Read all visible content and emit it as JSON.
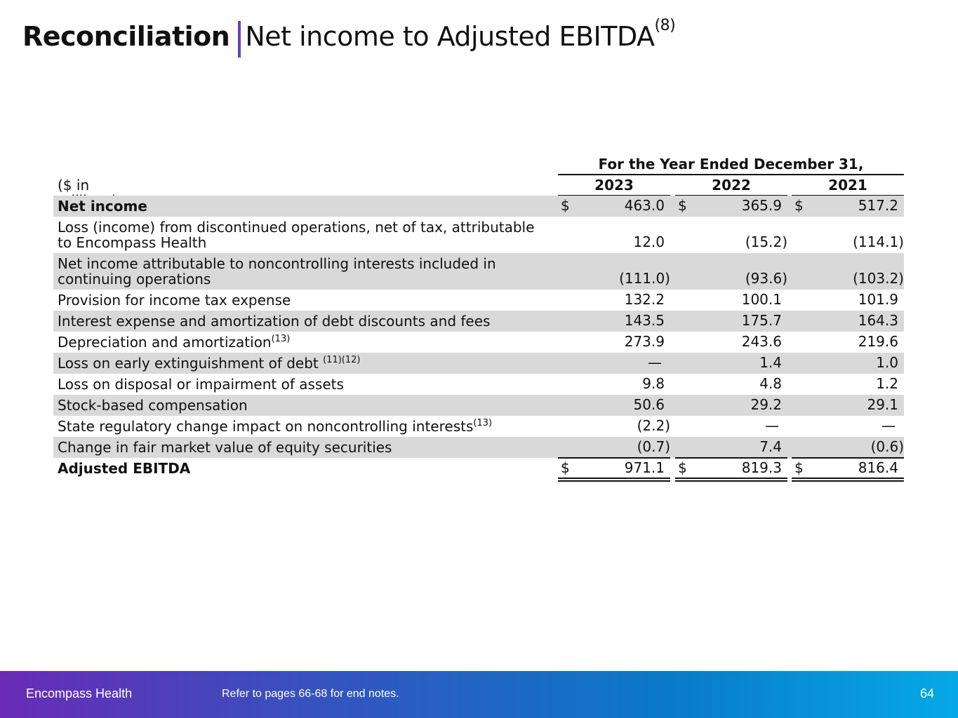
{
  "title": {
    "bold": "Reconciliation",
    "rest": "Net income to Adjusted EBITDA",
    "sup": "(8)"
  },
  "table": {
    "period_header": "For the Year Ended December 31,",
    "units_label": "($ in millions)",
    "years": [
      "2023",
      "2022",
      "2021"
    ],
    "rows": [
      {
        "label": "Net income",
        "sup": "",
        "values": [
          "463.0",
          "365.9",
          "517.2"
        ],
        "dollar": true,
        "bold": true
      },
      {
        "label": "Loss (income) from discontinued operations, net of tax, attributable\n   to Encompass Health",
        "sup": "",
        "values": [
          "12.0",
          "(15.2)",
          "(114.1)"
        ]
      },
      {
        "label": "Net income attributable to noncontrolling interests included in\n   continuing operations",
        "sup": "",
        "values": [
          "(111.0)",
          "(93.6)",
          "(103.2)"
        ]
      },
      {
        "label": "Provision for income tax expense",
        "sup": "",
        "values": [
          "132.2",
          "100.1",
          "101.9"
        ]
      },
      {
        "label": "Interest expense and amortization of debt discounts and fees",
        "sup": "",
        "values": [
          "143.5",
          "175.7",
          "164.3"
        ]
      },
      {
        "label": "Depreciation and amortization",
        "sup": "(13)",
        "values": [
          "273.9",
          "243.6",
          "219.6"
        ]
      },
      {
        "label": "Loss on early extinguishment of debt ",
        "sup": "(11)(12)",
        "values": [
          "—",
          "1.4",
          "1.0"
        ]
      },
      {
        "label": "Loss on disposal or impairment of assets",
        "sup": "",
        "values": [
          "9.8",
          "4.8",
          "1.2"
        ]
      },
      {
        "label": "Stock-based compensation",
        "sup": "",
        "values": [
          "50.6",
          "29.2",
          "29.1"
        ]
      },
      {
        "label": "State regulatory change impact on noncontrolling interests",
        "sup": "(13)",
        "values": [
          "(2.2)",
          "—",
          "—"
        ]
      },
      {
        "label": "Change in fair market value of equity securities",
        "sup": "",
        "values": [
          "(0.7)",
          "7.4",
          "(0.6)"
        ]
      },
      {
        "label": "   Adjusted EBITDA",
        "sup": "",
        "values": [
          "971.1",
          "819.3",
          "816.4"
        ],
        "dollar": true,
        "bold": true
      }
    ],
    "currency_symbol": "$"
  },
  "footer": {
    "company": "Encompass Health",
    "note": "Refer to pages 66-68 for end notes.",
    "page": "64"
  }
}
